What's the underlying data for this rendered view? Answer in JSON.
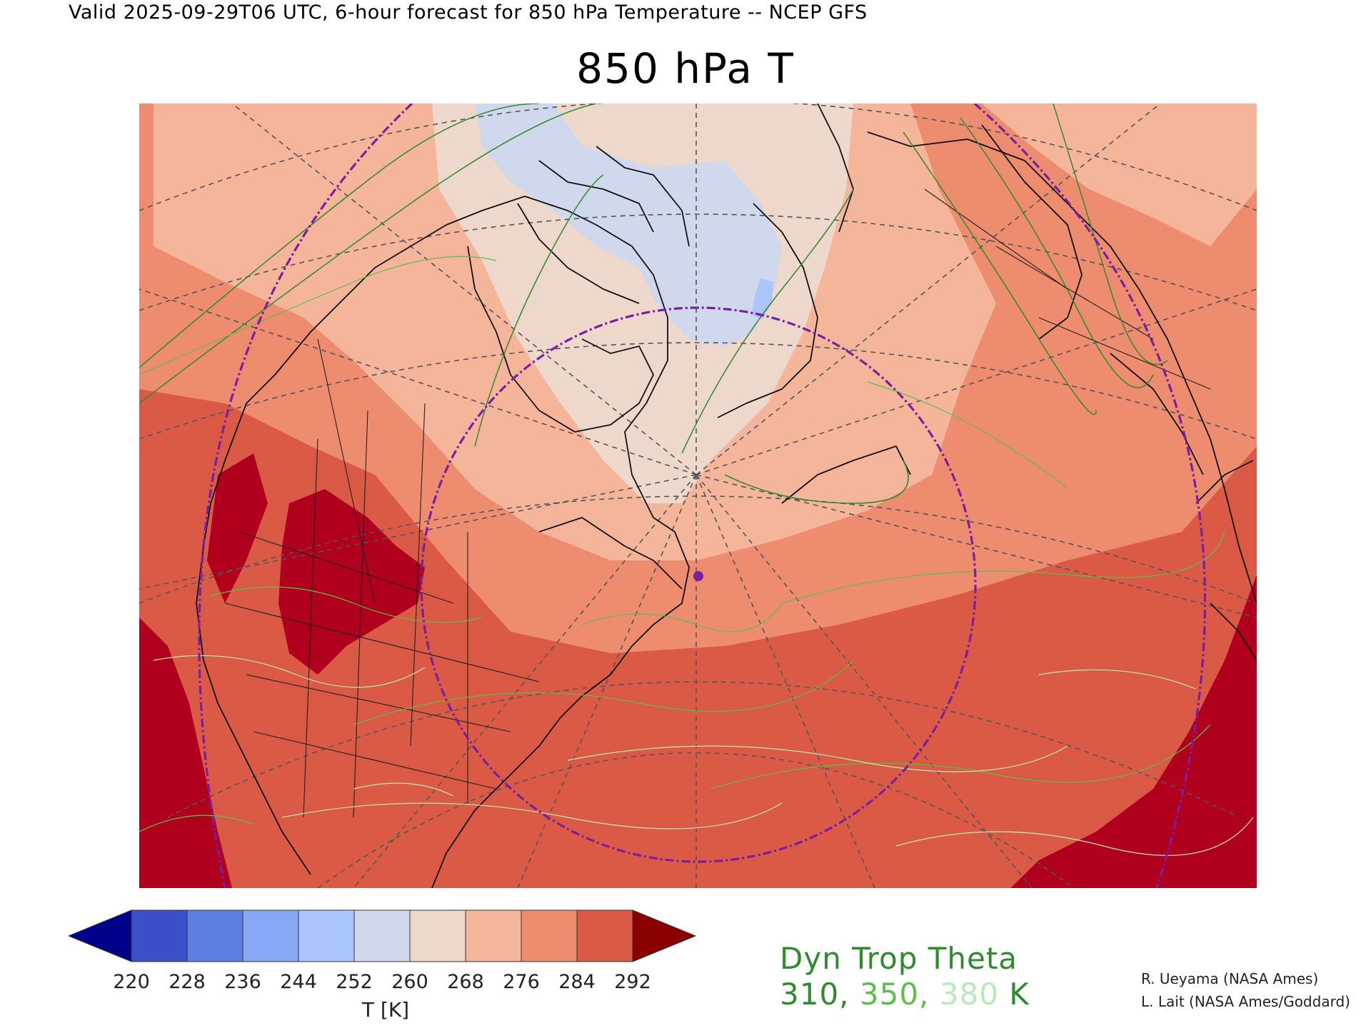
{
  "header": {
    "valid_line": "Valid 2025-09-29T06 UTC, 6-hour forecast for 850 hPa Temperature -- NCEP GFS",
    "title": "850 hPa T"
  },
  "colors": {
    "fill_palette": [
      "#00008b",
      "#3a4fc8",
      "#5d7fe4",
      "#86a8f5",
      "#aac6fb",
      "#cfd8ec",
      "#eed7cb",
      "#f5b59a",
      "#ee8c70",
      "#da5a46",
      "#8b0000"
    ],
    "contour_310": "#2e8b2e",
    "contour_350": "#5cbf4a",
    "contour_380": "#b8eab8",
    "special_line": "#7b1fa2",
    "boundaries": "#111111",
    "graticule": "#555555"
  },
  "colorbar": {
    "ticks": [
      "220",
      "228",
      "236",
      "244",
      "252",
      "260",
      "268",
      "276",
      "284",
      "292"
    ],
    "label": "T [K]"
  },
  "legend": {
    "title": "Dyn Trop Theta",
    "value_310": "310",
    "sep1": ", ",
    "value_350": "350",
    "sep2": ", ",
    "value_380": "380",
    "unit": " K"
  },
  "credits": {
    "line1": "R. Ueyama (NASA Ames)",
    "line2": "L. Lait (NASA Ames/Goddard)"
  }
}
